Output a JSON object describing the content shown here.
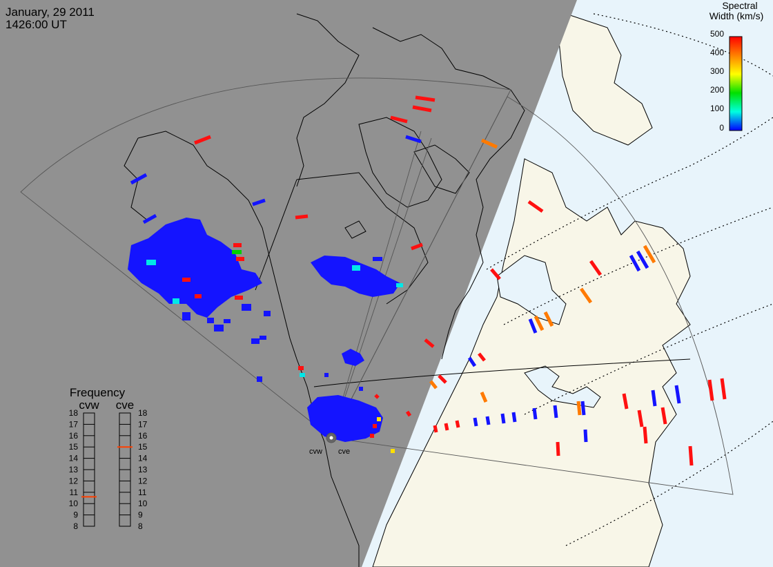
{
  "header": {
    "date": "January, 29 2011",
    "time": "1426:00 UT"
  },
  "legend": {
    "title_line1": "Spectral",
    "title_line2": "Width (km/s)",
    "ticks": [
      "500",
      "400",
      "300",
      "200",
      "100",
      "0"
    ],
    "range": [
      0,
      500
    ]
  },
  "frequency": {
    "title": "Frequency",
    "radars": [
      {
        "name": "cvw",
        "value": 10.6
      },
      {
        "name": "cve",
        "value": 15.0
      }
    ],
    "ticks": [
      "18",
      "17",
      "16",
      "15",
      "14",
      "13",
      "12",
      "11",
      "10",
      "9",
      "8"
    ]
  },
  "radar_labels": {
    "west": "cvw",
    "east": "cve"
  },
  "colors": {
    "night": "#919191",
    "land": "#f8f6e8",
    "ocean": "#e8f4fb",
    "marker": "#ff4000",
    "scale": [
      "#0000ff",
      "#00ffe0",
      "#00e000",
      "#ffff00",
      "#ff8000",
      "#ff0000"
    ]
  }
}
